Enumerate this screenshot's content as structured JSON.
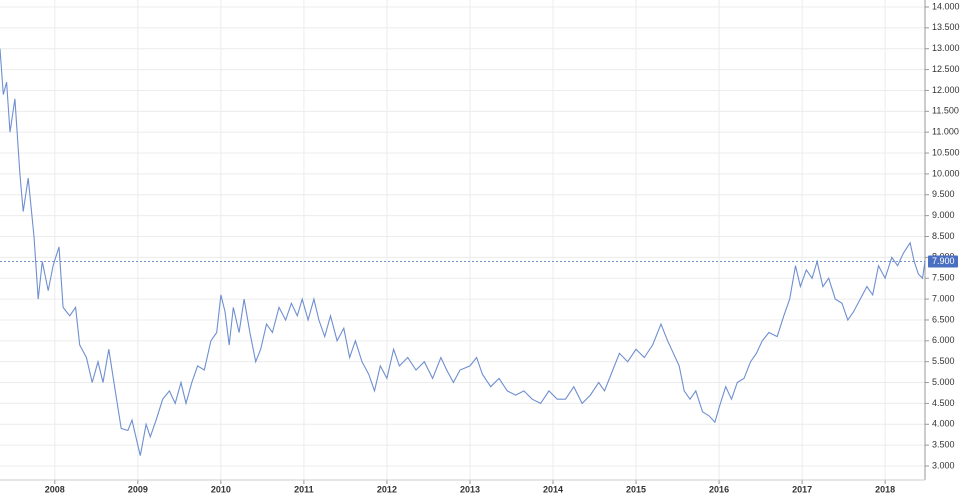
{
  "chart_data": {
    "type": "line",
    "xlim": [
      2007.34,
      2018.48
    ],
    "xticks": [
      2008,
      2009,
      2010,
      2011,
      2012,
      2013,
      2014,
      2015,
      2016,
      2017,
      2018
    ],
    "ylim": [
      3,
      14.0
    ],
    "yticks": [
      {
        "value": 3,
        "label": "3.000"
      },
      {
        "value": 3.5,
        "label": "3.500"
      },
      {
        "value": 4,
        "label": "4.000"
      },
      {
        "value": 4.5,
        "label": "4.500"
      },
      {
        "value": 5,
        "label": "5.000"
      },
      {
        "value": 5.5,
        "label": "5.500"
      },
      {
        "value": 6,
        "label": "6.000"
      },
      {
        "value": 6.5,
        "label": "6.500"
      },
      {
        "value": 7,
        "label": "7.000"
      },
      {
        "value": 7.5,
        "label": "7.500"
      },
      {
        "value": 8,
        "label": "8.000"
      },
      {
        "value": 8.5,
        "label": "8.500"
      },
      {
        "value": 9,
        "label": "9.000"
      },
      {
        "value": 9.5,
        "label": "9.500"
      },
      {
        "value": 10,
        "label": "10.000"
      },
      {
        "value": 10.5,
        "label": "10.500"
      },
      {
        "value": 11,
        "label": "11.000"
      },
      {
        "value": 11.5,
        "label": "11.500"
      },
      {
        "value": 12,
        "label": "12.000"
      },
      {
        "value": 12.5,
        "label": "12.500"
      },
      {
        "value": 13,
        "label": "13.000"
      },
      {
        "value": 13.5,
        "label": "13.500"
      },
      {
        "value": 14,
        "label": "14.000"
      }
    ],
    "grid": true,
    "color": "#6f8fd0",
    "last_value": {
      "value": 7.9,
      "label": "7.900"
    },
    "x": [
      2007.34,
      2007.38,
      2007.42,
      2007.46,
      2007.52,
      2007.58,
      2007.62,
      2007.68,
      2007.75,
      2007.8,
      2007.85,
      2007.92,
      2007.98,
      2008.05,
      2008.1,
      2008.18,
      2008.25,
      2008.3,
      2008.38,
      2008.45,
      2008.52,
      2008.58,
      2008.65,
      2008.72,
      2008.8,
      2008.88,
      2008.93,
      2009.0,
      2009.03,
      2009.1,
      2009.15,
      2009.22,
      2009.3,
      2009.38,
      2009.45,
      2009.52,
      2009.58,
      2009.65,
      2009.72,
      2009.8,
      2009.88,
      2009.95,
      2010.0,
      2010.05,
      2010.1,
      2010.15,
      2010.22,
      2010.28,
      2010.35,
      2010.42,
      2010.48,
      2010.55,
      2010.62,
      2010.7,
      2010.78,
      2010.85,
      2010.92,
      2010.98,
      2011.05,
      2011.12,
      2011.18,
      2011.25,
      2011.32,
      2011.4,
      2011.48,
      2011.55,
      2011.62,
      2011.7,
      2011.78,
      2011.85,
      2011.92,
      2012.0,
      2012.08,
      2012.15,
      2012.25,
      2012.35,
      2012.45,
      2012.55,
      2012.65,
      2012.72,
      2012.8,
      2012.88,
      2013.0,
      2013.08,
      2013.15,
      2013.25,
      2013.35,
      2013.45,
      2013.55,
      2013.65,
      2013.75,
      2013.85,
      2013.95,
      2014.05,
      2014.15,
      2014.25,
      2014.35,
      2014.45,
      2014.55,
      2014.62,
      2014.72,
      2014.8,
      2014.9,
      2015.0,
      2015.1,
      2015.2,
      2015.3,
      2015.38,
      2015.45,
      2015.52,
      2015.58,
      2015.65,
      2015.72,
      2015.8,
      2015.88,
      2015.95,
      2016.0,
      2016.08,
      2016.15,
      2016.22,
      2016.3,
      2016.38,
      2016.45,
      2016.52,
      2016.6,
      2016.7,
      2016.78,
      2016.85,
      2016.92,
      2016.98,
      2017.05,
      2017.12,
      2017.18,
      2017.25,
      2017.32,
      2017.4,
      2017.48,
      2017.55,
      2017.62,
      2017.7,
      2017.78,
      2017.85,
      2017.92,
      2018.0,
      2018.08,
      2018.15,
      2018.22,
      2018.3,
      2018.35,
      2018.4,
      2018.45,
      2018.48
    ],
    "values": [
      13.0,
      11.9,
      12.2,
      11.0,
      11.8,
      10.0,
      9.1,
      9.9,
      8.5,
      7.0,
      7.9,
      7.2,
      7.8,
      8.25,
      6.8,
      6.6,
      6.8,
      5.9,
      5.6,
      5.0,
      5.5,
      5.0,
      5.8,
      4.9,
      3.9,
      3.85,
      4.1,
      3.5,
      3.25,
      4.0,
      3.7,
      4.1,
      4.6,
      4.8,
      4.5,
      5.0,
      4.5,
      5.0,
      5.4,
      5.3,
      6.0,
      6.2,
      7.1,
      6.7,
      5.9,
      6.8,
      6.2,
      7.0,
      6.2,
      5.5,
      5.8,
      6.4,
      6.2,
      6.8,
      6.5,
      6.9,
      6.6,
      7.0,
      6.5,
      7.0,
      6.5,
      6.1,
      6.6,
      6.0,
      6.3,
      5.6,
      6.0,
      5.5,
      5.2,
      4.8,
      5.4,
      5.1,
      5.8,
      5.4,
      5.6,
      5.3,
      5.5,
      5.1,
      5.6,
      5.3,
      5.0,
      5.3,
      5.4,
      5.6,
      5.2,
      4.9,
      5.1,
      4.8,
      4.7,
      4.8,
      4.6,
      4.5,
      4.8,
      4.6,
      4.6,
      4.9,
      4.5,
      4.7,
      5.0,
      4.8,
      5.3,
      5.7,
      5.5,
      5.8,
      5.6,
      5.9,
      6.4,
      6.0,
      5.7,
      5.4,
      4.8,
      4.6,
      4.8,
      4.3,
      4.2,
      4.05,
      4.4,
      4.9,
      4.6,
      5.0,
      5.1,
      5.5,
      5.7,
      6.0,
      6.2,
      6.1,
      6.6,
      7.0,
      7.8,
      7.3,
      7.7,
      7.5,
      7.9,
      7.3,
      7.5,
      7.0,
      6.9,
      6.5,
      6.7,
      7.0,
      7.3,
      7.1,
      7.8,
      7.5,
      8.0,
      7.8,
      8.1,
      8.35,
      7.9,
      7.6,
      7.5,
      7.9
    ]
  }
}
